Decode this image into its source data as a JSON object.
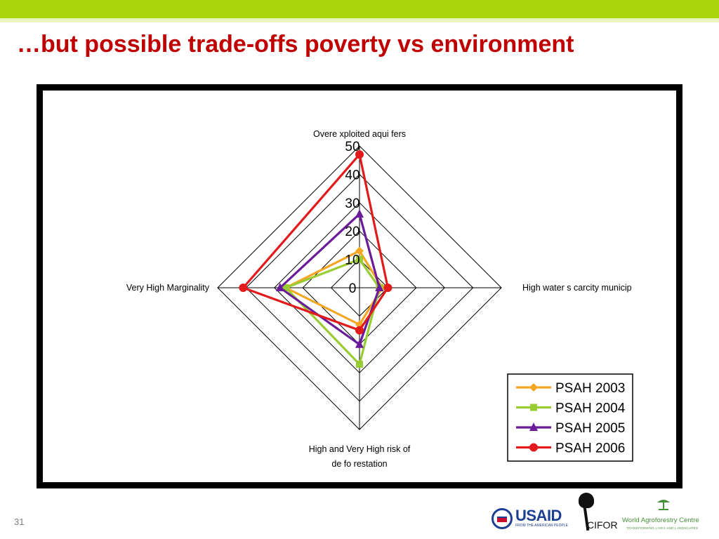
{
  "slide": {
    "title": "…but possible trade-offs poverty vs environment",
    "number": "31"
  },
  "colors": {
    "top_bar": "#a8d40c",
    "title": "#c00000"
  },
  "chart_data": {
    "type": "radar",
    "axes": [
      "Overexploited aquifers",
      "High water s carcity municip",
      "High and Very High risk of de fo restation",
      "Very High Marginality"
    ],
    "axis_label_lines": {
      "top": [
        "Overe xploited aqui fers"
      ],
      "right": [
        "High water s carcity municip"
      ],
      "bottom": [
        "High and Very High risk of",
        "de fo restation"
      ],
      "left": [
        "Very High Marginality"
      ]
    },
    "ticks": [
      "0",
      "10",
      "20",
      "30",
      "40",
      "50"
    ],
    "rmax": 50,
    "series": [
      {
        "name": "PSAH 2003",
        "color": "#f5a623",
        "marker": "diamond",
        "values": [
          13,
          8,
          13,
          26
        ]
      },
      {
        "name": "PSAH 2004",
        "color": "#99cc33",
        "marker": "square",
        "values": [
          10,
          7,
          27,
          26
        ]
      },
      {
        "name": "PSAH 2005",
        "color": "#6a1b9a",
        "marker": "triangle",
        "values": [
          26,
          7,
          20,
          28
        ]
      },
      {
        "name": "PSAH 2006",
        "color": "#e31a1c",
        "marker": "circle",
        "values": [
          47,
          10,
          15,
          41
        ]
      }
    ],
    "legend_position": "bottom-right",
    "grid": true
  },
  "logos": {
    "usaid": {
      "text": "USAID",
      "sub": "FROM THE AMERICAN PEOPLE"
    },
    "cifor": {
      "text": "CIFOR"
    },
    "icraf": {
      "text": "World Agroforestry Centre",
      "sub": "TRANSFORMING LIVES AND LANDSCAPES"
    }
  }
}
